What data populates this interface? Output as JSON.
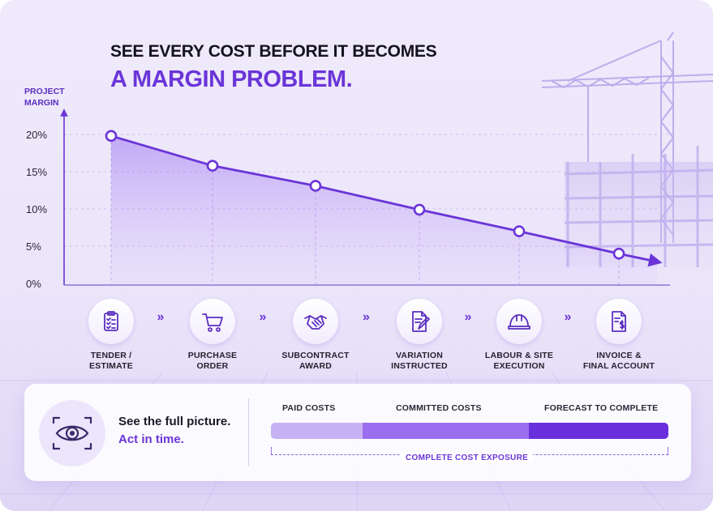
{
  "headline": {
    "line1": "SEE EVERY COST BEFORE IT BECOMES",
    "line2": "A MARGIN PROBLEM."
  },
  "chart_data": {
    "type": "line",
    "ylabel": "PROJECT\nMARGIN",
    "y_unit": "%",
    "ylim": [
      0,
      20
    ],
    "yticks": [
      "0%",
      "5%",
      "10%",
      "15%",
      "20%"
    ],
    "categories": [
      "TENDER /\nESTIMATE",
      "PURCHASE\nORDER",
      "SUBCONTRACT\nAWARD",
      "VARIATION\nINSTRUCTED",
      "LABOUR & SITE\nEXECUTION",
      "INVOICE &\nFINAL ACCOUNT"
    ],
    "values": [
      19.8,
      15.8,
      13.1,
      9.9,
      7.0,
      4.0
    ],
    "grid": true,
    "accent_color": "#6a35d8"
  },
  "stages": [
    {
      "label": "TENDER /\nESTIMATE",
      "icon": "clipboard-checklist-icon"
    },
    {
      "label": "PURCHASE\nORDER",
      "icon": "shopping-cart-icon"
    },
    {
      "label": "SUBCONTRACT\nAWARD",
      "icon": "handshake-icon"
    },
    {
      "label": "VARIATION\nINSTRUCTED",
      "icon": "document-edit-icon"
    },
    {
      "label": "LABOUR & SITE\nEXECUTION",
      "icon": "hard-hat-icon"
    },
    {
      "label": "INVOICE &\nFINAL ACCOUNT",
      "icon": "invoice-dollar-icon"
    }
  ],
  "panel": {
    "icon": "eye-focus-icon",
    "title": "See the full picture.",
    "subtitle": "Act in time.",
    "segments": [
      {
        "label": "PAID COSTS",
        "share": 0.23,
        "color": "#c7b2f3"
      },
      {
        "label": "COMMITTED COSTS",
        "share": 0.42,
        "color": "#9b6ef0"
      },
      {
        "label": "FORECAST TO COMPLETE",
        "share": 0.35,
        "color": "#6a2fdc"
      }
    ],
    "total_label": "COMPLETE COST EXPOSURE"
  }
}
